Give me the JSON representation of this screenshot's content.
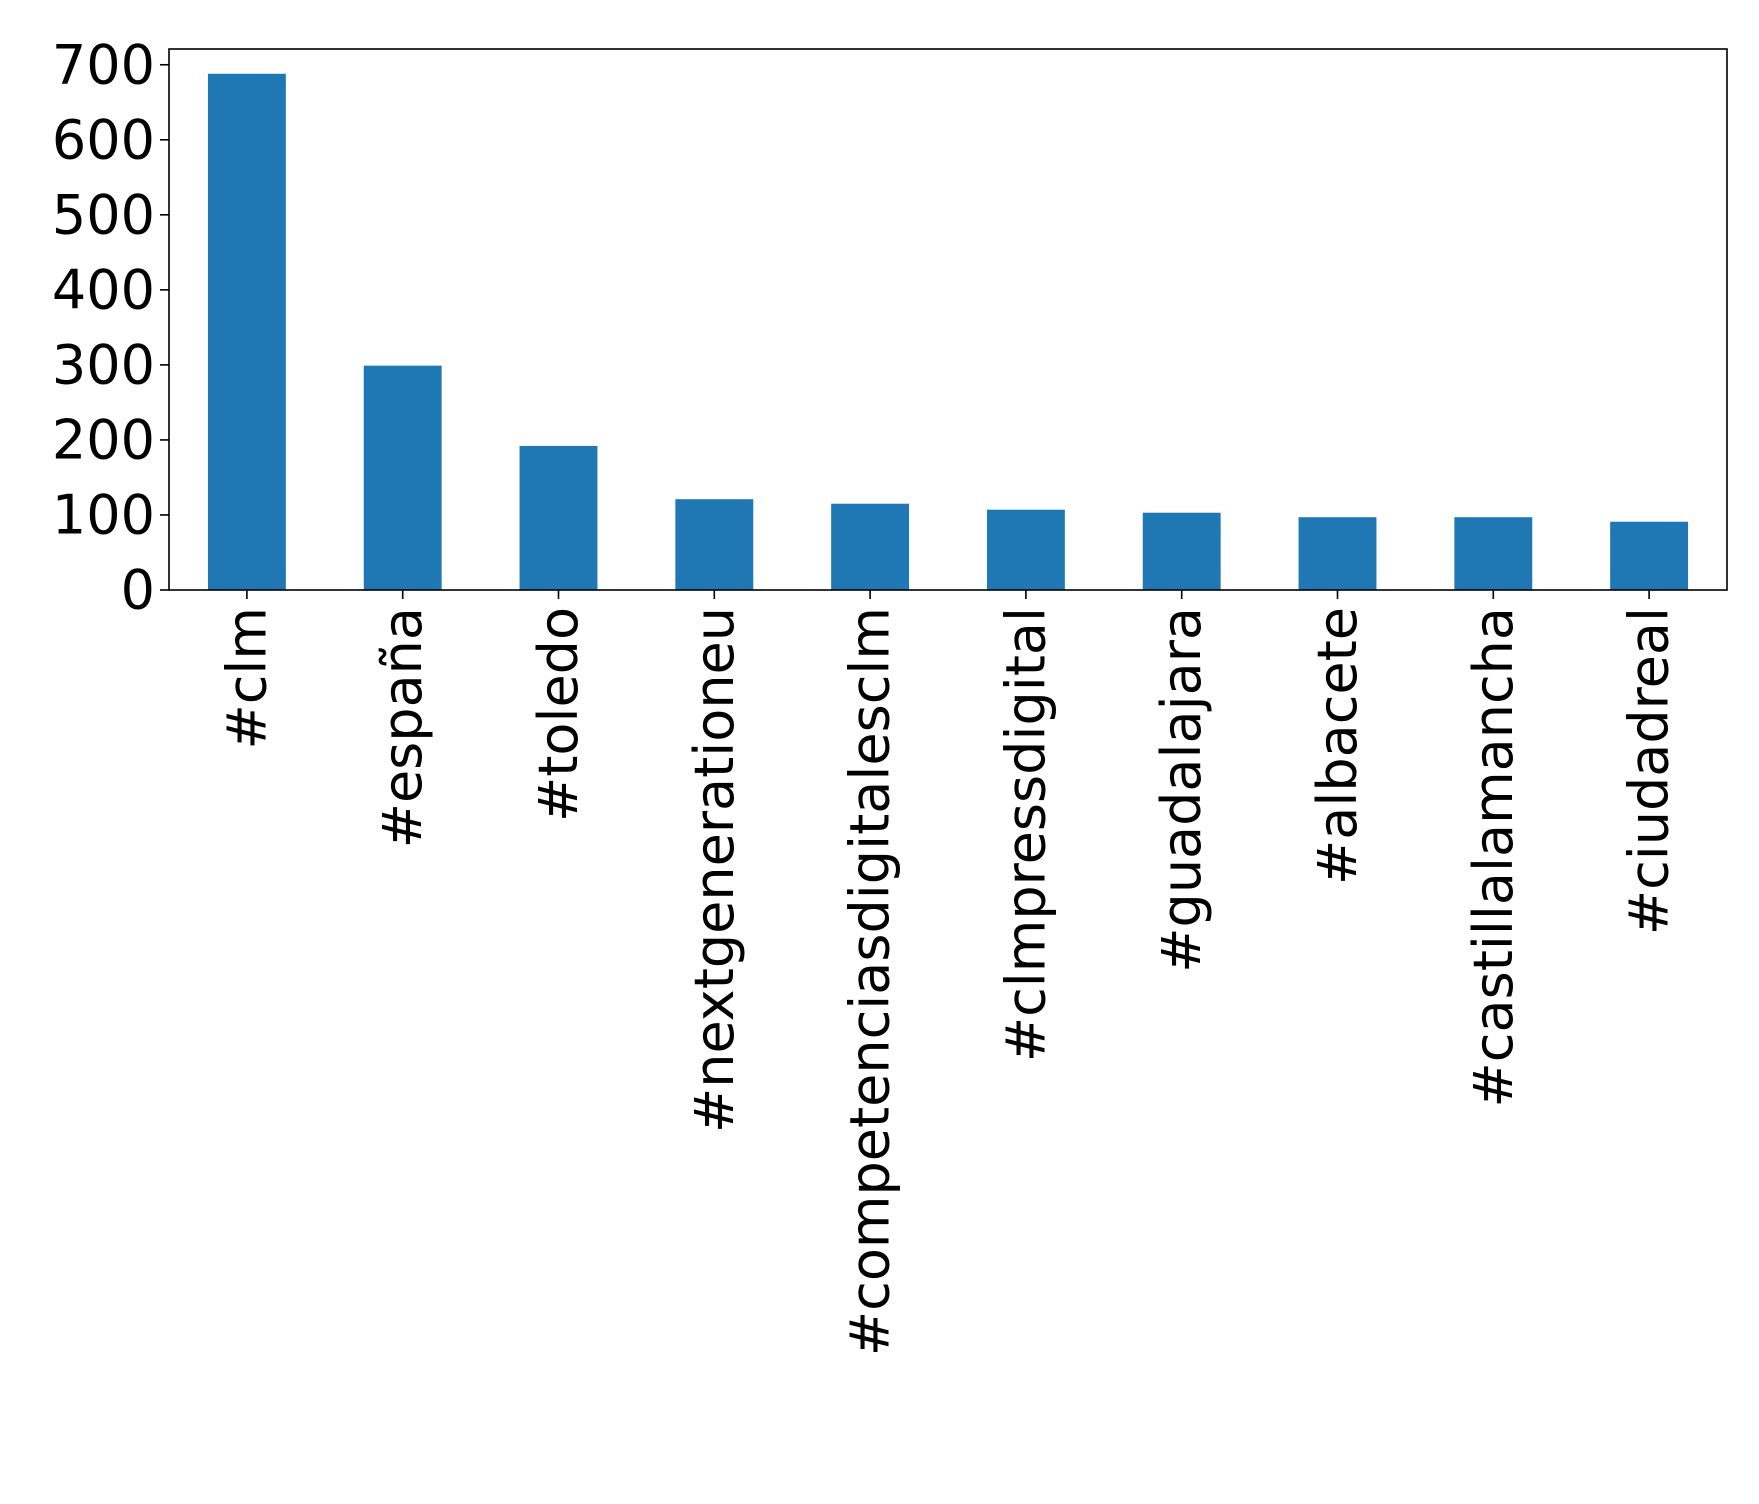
{
  "chart_data": {
    "type": "bar",
    "title": "",
    "xlabel": "",
    "ylabel": "",
    "categories": [
      "#clm",
      "#españa",
      "#toledo",
      "#nextgenerationeu",
      "#competenciasdigitalesclm",
      "#clmpressdigital",
      "#guadalajara",
      "#albacete",
      "#castillalamancha",
      "#ciudadreal"
    ],
    "values": [
      688,
      299,
      192,
      121,
      115,
      107,
      103,
      97,
      97,
      91
    ],
    "ylim": [
      0,
      721
    ],
    "yticks": [
      0,
      100,
      200,
      300,
      400,
      500,
      600,
      700
    ],
    "bar_color": "#1f77b4",
    "grid": false,
    "legend": "none"
  }
}
